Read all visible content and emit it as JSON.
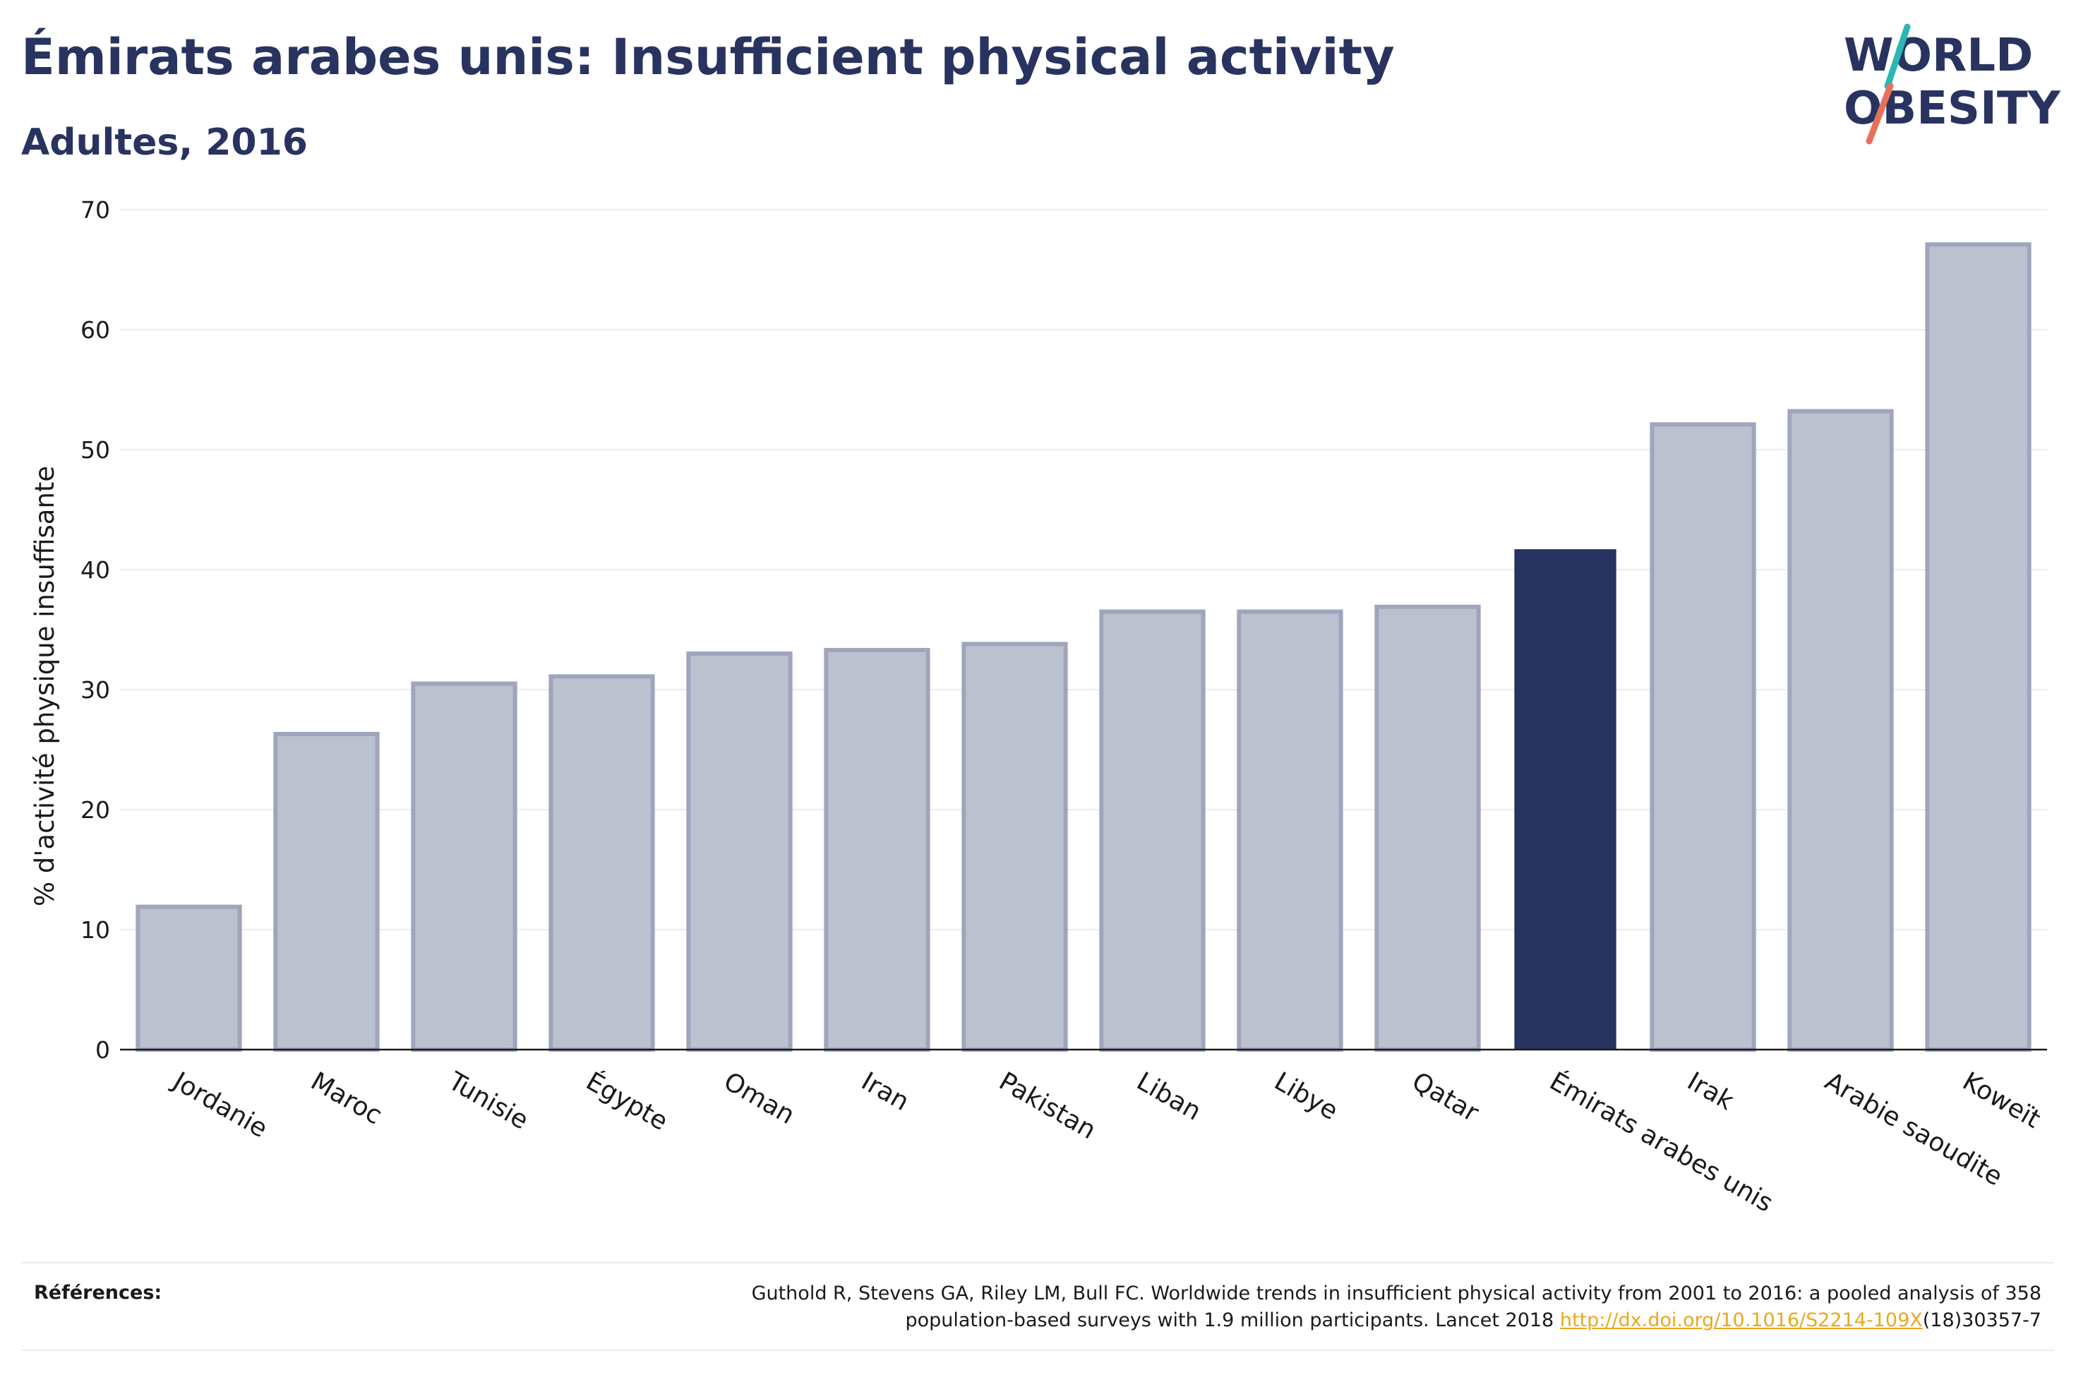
{
  "header": {
    "title": "Émirats arabes unis: Insufficient physical activity",
    "subtitle": "Adultes, 2016"
  },
  "logo": {
    "line1": "WORLD",
    "line2": "OBESITY",
    "text_color": "#283360",
    "slash_colors": [
      "#2bb7b3",
      "#e8705a"
    ]
  },
  "colors": {
    "highlight_bar": "#283360",
    "other_bar_fill": "#bcc1cf",
    "other_bar_stroke": "#9ea5bc",
    "gridline": "#ececec",
    "link": "#e8a91c"
  },
  "chart_data": {
    "type": "bar",
    "title": "Émirats arabes unis: Insufficient physical activity",
    "subtitle": "Adultes, 2016",
    "xlabel": "",
    "ylabel": "% d'activité physique insuffisante",
    "ylim": [
      0,
      70
    ],
    "yticks": [
      0,
      10,
      20,
      30,
      40,
      50,
      60,
      70
    ],
    "grid": true,
    "highlight": "Émirats arabes unis",
    "categories": [
      "Jordanie",
      "Maroc",
      "Tunisie",
      "Égypte",
      "Oman",
      "Iran",
      "Pakistan",
      "Liban",
      "Libye",
      "Qatar",
      "Émirats arabes unis",
      "Irak",
      "Arabie saoudite",
      "Koweït"
    ],
    "values": [
      11.9,
      26.3,
      30.5,
      31.1,
      33.0,
      33.3,
      33.8,
      36.5,
      36.5,
      36.9,
      41.7,
      52.1,
      53.2,
      67.1
    ]
  },
  "footer": {
    "references_label": "Références:",
    "reference_line1": "Guthold R, Stevens GA, Riley LM, Bull FC. Worldwide trends in insufficient physical activity from 2001 to 2016: a pooled analysis of 358",
    "reference_line2_prefix": "population-based surveys with 1.9 million participants. Lancet 2018 ",
    "reference_link": "http://dx.doi.org/10.1016/S2214-109X",
    "reference_line2_suffix": "(18)30357-7"
  }
}
